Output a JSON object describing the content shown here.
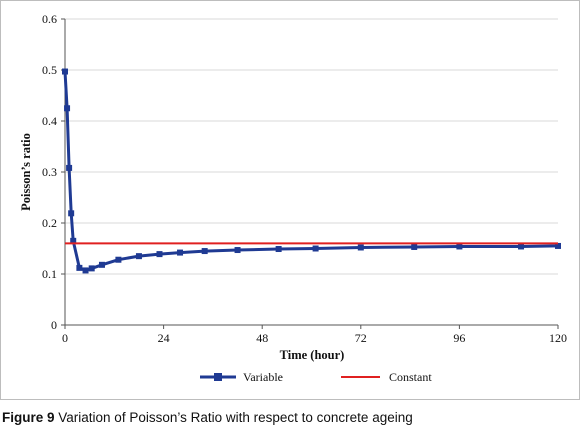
{
  "caption": {
    "label": "Figure 9",
    "text": "Variation of Poisson’s Ratio with respect to concrete ageing"
  },
  "chart_data": {
    "type": "line",
    "title": "",
    "xlabel": "Time (hour)",
    "ylabel": "Poisson’s ratio",
    "xlim": [
      0,
      120
    ],
    "ylim": [
      0,
      0.6
    ],
    "xticks": [
      0,
      24,
      48,
      72,
      96,
      120
    ],
    "yticks": [
      0,
      0.1,
      0.2,
      0.3,
      0.4,
      0.5,
      0.6
    ],
    "xtick_labels": [
      "0",
      "24",
      "48",
      "72",
      "96",
      "120"
    ],
    "ytick_labels": [
      "0",
      "0.1",
      "0.2",
      "0.3",
      "0.4",
      "0.5",
      "0.6"
    ],
    "grid": "horizontal",
    "legend_position": "bottom",
    "series": [
      {
        "name": "Variable",
        "color": "#1F3A93",
        "marker": "square",
        "x": [
          0,
          0.5,
          1,
          1.5,
          2,
          3.5,
          5,
          6.5,
          9,
          13,
          18,
          23,
          28,
          34,
          42,
          52,
          61,
          72,
          85,
          96,
          111,
          120
        ],
        "y": [
          0.497,
          0.425,
          0.308,
          0.219,
          0.165,
          0.112,
          0.107,
          0.111,
          0.118,
          0.128,
          0.135,
          0.139,
          0.142,
          0.145,
          0.147,
          0.149,
          0.15,
          0.152,
          0.153,
          0.154,
          0.154,
          0.155
        ]
      },
      {
        "name": "Constant",
        "color": "#E02020",
        "marker": "none",
        "x": [
          0,
          120
        ],
        "y": [
          0.16,
          0.16
        ]
      }
    ]
  }
}
